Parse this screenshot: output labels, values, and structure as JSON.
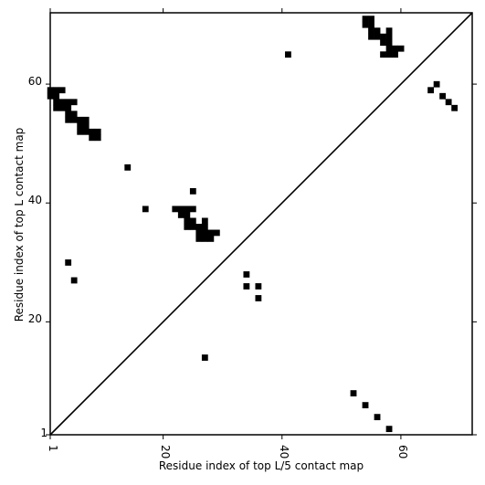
{
  "chart_data": {
    "type": "scatter",
    "title": "",
    "xlabel": "Residue index of top L/5 contact map",
    "ylabel": "Residue index of top L contact map",
    "xlim": [
      1,
      72
    ],
    "ylim": [
      1,
      72
    ],
    "x_ticks": [
      "1",
      "20",
      "40",
      "60"
    ],
    "y_ticks": [
      "1",
      "20",
      "40",
      "60"
    ],
    "grid": false,
    "marker": "square",
    "colors": {
      "marker": "#000000",
      "frame": "#000000",
      "background": "#ffffff"
    },
    "diagonal_reference_line": true,
    "series": [
      {
        "points_upper_triangle_top_L": [
          [
            1,
            59
          ],
          [
            2,
            59
          ],
          [
            3,
            59
          ],
          [
            1,
            58
          ],
          [
            2,
            58
          ],
          [
            2,
            57
          ],
          [
            3,
            57
          ],
          [
            4,
            57
          ],
          [
            5,
            57
          ],
          [
            2,
            56
          ],
          [
            3,
            56
          ],
          [
            4,
            56
          ],
          [
            4,
            55
          ],
          [
            5,
            55
          ],
          [
            4,
            54
          ],
          [
            5,
            54
          ],
          [
            6,
            54
          ],
          [
            7,
            54
          ],
          [
            6,
            53
          ],
          [
            7,
            53
          ],
          [
            6,
            52
          ],
          [
            7,
            52
          ],
          [
            8,
            52
          ],
          [
            9,
            52
          ],
          [
            8,
            51
          ],
          [
            9,
            51
          ],
          [
            14,
            46
          ],
          [
            17,
            39
          ],
          [
            25,
            42
          ],
          [
            22,
            39
          ],
          [
            23,
            39
          ],
          [
            24,
            39
          ],
          [
            25,
            39
          ],
          [
            23,
            38
          ],
          [
            24,
            38
          ],
          [
            24,
            37
          ],
          [
            25,
            37
          ],
          [
            27,
            37
          ],
          [
            24,
            36
          ],
          [
            25,
            36
          ],
          [
            26,
            36
          ],
          [
            27,
            36
          ],
          [
            26,
            35
          ],
          [
            27,
            35
          ],
          [
            28,
            35
          ],
          [
            29,
            35
          ],
          [
            26,
            34
          ],
          [
            27,
            34
          ],
          [
            28,
            34
          ],
          [
            4,
            30
          ],
          [
            5,
            27
          ],
          [
            34,
            28
          ],
          [
            34,
            26
          ],
          [
            36,
            26
          ],
          [
            36,
            24
          ],
          [
            27,
            14
          ],
          [
            41,
            65
          ],
          [
            54,
            71
          ],
          [
            55,
            71
          ],
          [
            54,
            70
          ],
          [
            55,
            70
          ],
          [
            55,
            69
          ],
          [
            56,
            69
          ],
          [
            58,
            69
          ],
          [
            55,
            68
          ],
          [
            56,
            68
          ],
          [
            57,
            68
          ],
          [
            58,
            68
          ],
          [
            57,
            67
          ],
          [
            58,
            67
          ],
          [
            58,
            66
          ],
          [
            59,
            66
          ],
          [
            60,
            66
          ],
          [
            57,
            65
          ],
          [
            58,
            65
          ],
          [
            59,
            65
          ],
          [
            66,
            60
          ],
          [
            65,
            59
          ],
          [
            67,
            58
          ],
          [
            68,
            57
          ],
          [
            69,
            56
          ]
        ],
        "points_lower_triangle_top_L5": [
          [
            52,
            8
          ],
          [
            54,
            6
          ],
          [
            56,
            4
          ],
          [
            58,
            2
          ]
        ]
      }
    ]
  }
}
